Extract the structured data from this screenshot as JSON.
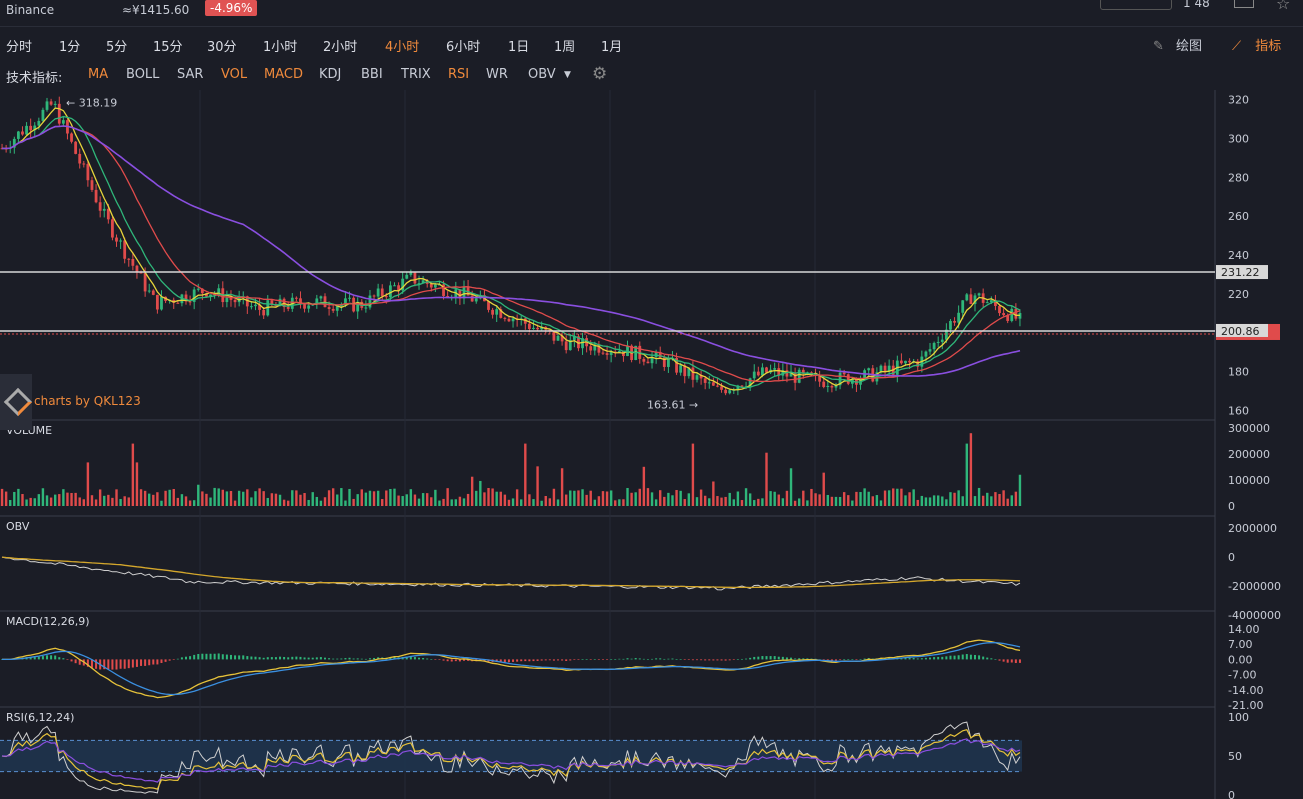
{
  "header": {
    "exchange": "Binance",
    "price": "≈¥1415.60",
    "change": "-4.96%",
    "right_status": "1 48"
  },
  "timeframes": [
    "分时",
    "1分",
    "5分",
    "15分",
    "30分",
    "1小时",
    "2小时",
    "4小时",
    "6小时",
    "1日",
    "1周",
    "1月"
  ],
  "active_timeframe": "4小时",
  "toolbar_right": {
    "draw_label": "绘图",
    "indicator_label": "指标"
  },
  "indicators_label": "技术指标:",
  "indicators": [
    {
      "name": "MA",
      "on": true
    },
    {
      "name": "BOLL",
      "on": false
    },
    {
      "name": "SAR",
      "on": false
    },
    {
      "name": "VOL",
      "on": true
    },
    {
      "name": "MACD",
      "on": true
    },
    {
      "name": "KDJ",
      "on": false
    },
    {
      "name": "BBI",
      "on": false
    },
    {
      "name": "TRIX",
      "on": false
    },
    {
      "name": "RSI",
      "on": true
    },
    {
      "name": "WR",
      "on": false
    },
    {
      "name": "OBV",
      "on": false
    }
  ],
  "watermark": "charts by QKL123",
  "colors": {
    "up": "#2fb67a",
    "down": "#e04b4b",
    "accent": "#f08a3c",
    "ma5": "#e6d43a",
    "ma10": "#2fb67a",
    "ma20": "#e04b4b",
    "ma60": "#8a4fe0"
  },
  "main_chart": {
    "y_ticks": [
      "320",
      "300",
      "280",
      "260",
      "240",
      "220",
      "180",
      "160"
    ],
    "high_label": "318.19",
    "low_label": "163.61",
    "line1_label": "231.22",
    "line2_label": "200.86"
  },
  "volume_panel": {
    "label": "VOLUME",
    "ticks": [
      "300000",
      "200000",
      "100000",
      "0"
    ]
  },
  "obv_panel": {
    "label": "OBV",
    "ticks": [
      "2000000",
      "0",
      "-2000000",
      "-4000000"
    ]
  },
  "macd_panel": {
    "label": "MACD(12,26,9)",
    "ticks": [
      "14.00",
      "7.00",
      "0.00",
      "-7.00",
      "-14.00",
      "-21.00"
    ]
  },
  "rsi_panel": {
    "label": "RSI(6,12,24)",
    "ticks": [
      "100",
      "50",
      "0"
    ]
  },
  "chart_data": {
    "type": "line",
    "title": "",
    "price_trend_x": [
      0,
      10,
      20,
      30,
      40,
      50,
      60,
      70,
      80,
      90,
      100,
      110,
      120,
      130,
      140,
      150,
      160,
      170,
      180,
      190,
      200
    ],
    "price_trend": [
      295,
      318,
      260,
      215,
      222,
      212,
      216,
      214,
      228,
      220,
      208,
      195,
      192,
      185,
      170,
      180,
      175,
      178,
      186,
      220,
      205
    ],
    "ylim": [
      155,
      325
    ],
    "horizontal_levels": [
      231.22,
      200.86
    ]
  }
}
